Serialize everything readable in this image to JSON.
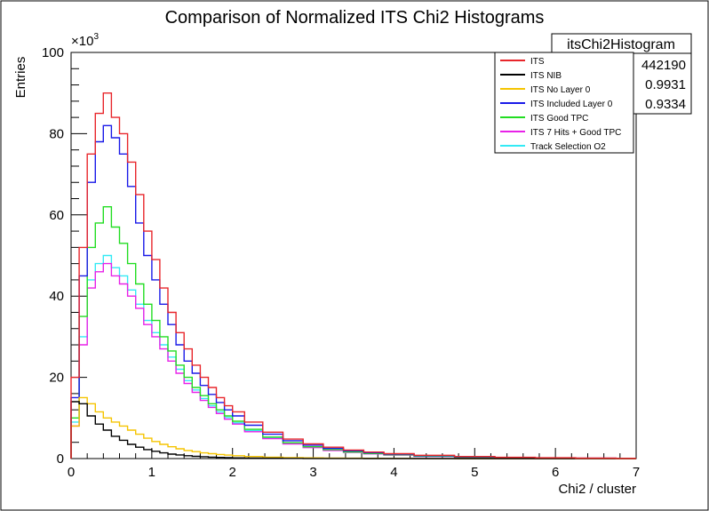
{
  "chart_data": {
    "type": "histogram",
    "title": "Comparison of Normalized ITS Chi2 Histograms",
    "xlabel": "Chi2 / cluster",
    "ylabel": "Entries",
    "y_exponent_label": "×10",
    "y_exponent_power": "3",
    "xlim": [
      0,
      7
    ],
    "ylim": [
      0,
      100000
    ],
    "x_ticks": [
      "0",
      "1",
      "2",
      "3",
      "4",
      "5",
      "6",
      "7"
    ],
    "y_ticks": [
      "0",
      "20",
      "40",
      "60",
      "80",
      "100"
    ],
    "grid": false,
    "legend_position": "top-right",
    "x_bin_centers": [
      0.05,
      0.15,
      0.25,
      0.35,
      0.45,
      0.55,
      0.65,
      0.75,
      0.85,
      0.95,
      1.05,
      1.15,
      1.25,
      1.35,
      1.45,
      1.55,
      1.65,
      1.75,
      1.85,
      1.95,
      2.05,
      2.25,
      2.5,
      2.75,
      3.0,
      3.25,
      3.5,
      3.75,
      4.0,
      4.5,
      5.0,
      5.5,
      6.0,
      6.5,
      7.0
    ],
    "series": [
      {
        "name": "ITS",
        "color": "#e8262b",
        "values": [
          20000,
          52000,
          75000,
          85000,
          90000,
          84000,
          80000,
          73000,
          65000,
          56000,
          49000,
          42000,
          36000,
          31000,
          27000,
          23000,
          20000,
          17500,
          15000,
          13000,
          11500,
          9000,
          6500,
          4800,
          3600,
          2800,
          2100,
          1600,
          1200,
          800,
          500,
          300,
          200,
          100,
          50
        ]
      },
      {
        "name": "ITS NIB",
        "color": "#000000",
        "values": [
          14000,
          13500,
          10500,
          8500,
          7000,
          5500,
          4500,
          3500,
          2800,
          2200,
          1800,
          1400,
          1100,
          900,
          700,
          550,
          450,
          350,
          280,
          220,
          180,
          120,
          80,
          50,
          30,
          20,
          15,
          10,
          5,
          3,
          2,
          1,
          0,
          0,
          0
        ]
      },
      {
        "name": "ITS No Layer 0",
        "color": "#f5c400",
        "values": [
          8000,
          15000,
          13500,
          11500,
          10000,
          9000,
          8000,
          7000,
          6000,
          5000,
          4200,
          3500,
          2900,
          2400,
          2000,
          1700,
          1400,
          1200,
          1000,
          850,
          700,
          500,
          350,
          250,
          180,
          130,
          90,
          60,
          40,
          20,
          10,
          5,
          2,
          1,
          0
        ]
      },
      {
        "name": "ITS Included Layer 0",
        "color": "#1a1ae8",
        "values": [
          15000,
          45000,
          68000,
          78000,
          82000,
          79000,
          75000,
          67000,
          58000,
          50000,
          44000,
          38000,
          33000,
          28000,
          24000,
          21000,
          18000,
          15800,
          13800,
          12000,
          10500,
          8200,
          6000,
          4400,
          3300,
          2500,
          1900,
          1450,
          1100,
          700,
          420,
          260,
          160,
          90,
          40
        ]
      },
      {
        "name": "ITS Good TPC",
        "color": "#22dd22",
        "values": [
          10000,
          35000,
          52000,
          58000,
          62000,
          57000,
          53000,
          48000,
          43000,
          38000,
          34000,
          30000,
          26500,
          23000,
          20000,
          17500,
          15500,
          13500,
          12000,
          10500,
          9200,
          7200,
          5300,
          3900,
          2900,
          2200,
          1650,
          1250,
          950,
          600,
          360,
          220,
          130,
          70,
          30
        ]
      },
      {
        "name": "ITS 7 Hits + Good TPC",
        "color": "#e822e8",
        "values": [
          8000,
          28000,
          42000,
          46000,
          48000,
          45000,
          43000,
          40000,
          37000,
          33000,
          30000,
          27000,
          24000,
          21000,
          18500,
          16300,
          14300,
          12600,
          11100,
          9700,
          8500,
          6600,
          4900,
          3600,
          2700,
          2000,
          1500,
          1150,
          870,
          550,
          330,
          200,
          120,
          60,
          25
        ]
      },
      {
        "name": "Track Selection O2",
        "color": "#33eaf5",
        "values": [
          9000,
          30000,
          44000,
          48000,
          50000,
          47000,
          45000,
          41500,
          38000,
          34000,
          31000,
          28000,
          25000,
          22000,
          19200,
          16900,
          14800,
          13000,
          11500,
          10100,
          8800,
          6900,
          5100,
          3750,
          2800,
          2100,
          1550,
          1200,
          900,
          570,
          340,
          210,
          125,
          65,
          28
        ]
      }
    ]
  },
  "stats_box": {
    "title": "itsChi2Histogram",
    "values": [
      "442190",
      "0.9931",
      "0.9334"
    ]
  }
}
